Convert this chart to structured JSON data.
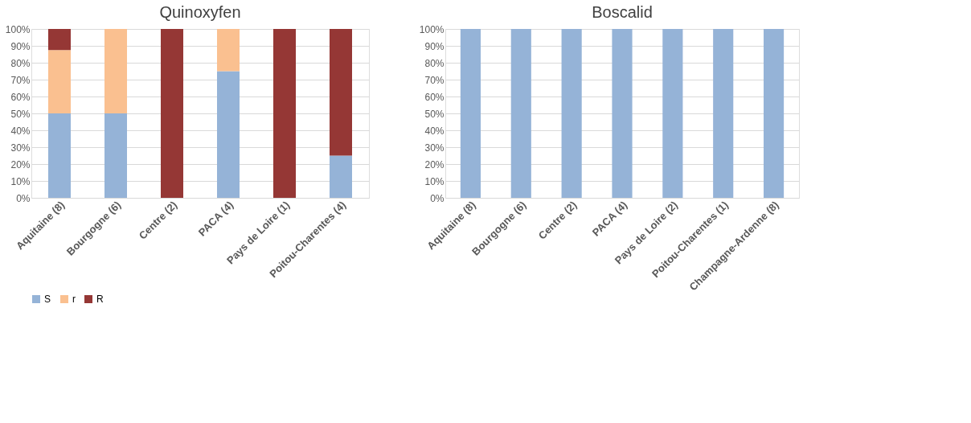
{
  "chart_data": [
    {
      "type": "bar",
      "title": "Quinoxyfen",
      "stacked": true,
      "categories": [
        "Aquitaine (8)",
        "Bourgogne (6)",
        "Centre (2)",
        "PACA (4)",
        "Pays de Loire (1)",
        "Poitou-Charentes (4)"
      ],
      "series": [
        {
          "name": "S",
          "color": "#95b3d7",
          "values": [
            50,
            50,
            0,
            75,
            0,
            25
          ]
        },
        {
          "name": "r",
          "color": "#fac090",
          "values": [
            37.5,
            50,
            0,
            25,
            0,
            0
          ]
        },
        {
          "name": "R",
          "color": "#953735",
          "values": [
            12.5,
            0,
            100,
            0,
            100,
            75
          ]
        }
      ],
      "ylim": [
        0,
        100
      ],
      "yticks": [
        {
          "value": 0,
          "label": "0%"
        },
        {
          "value": 10,
          "label": "10%"
        },
        {
          "value": 20,
          "label": "20%"
        },
        {
          "value": 30,
          "label": "30%"
        },
        {
          "value": 40,
          "label": "40%"
        },
        {
          "value": 50,
          "label": "50%"
        },
        {
          "value": 60,
          "label": "60%"
        },
        {
          "value": 70,
          "label": "70%"
        },
        {
          "value": 80,
          "label": "80%"
        },
        {
          "value": 90,
          "label": "90%"
        },
        {
          "value": 100,
          "label": "100%"
        }
      ],
      "grid": "y",
      "legend": "bottom"
    },
    {
      "type": "bar",
      "title": "Boscalid",
      "stacked": true,
      "categories": [
        "Aquitaine (8)",
        "Bourgogne (6)",
        "Centre (2)",
        "PACA (4)",
        "Pays de Loire (2)",
        "Poitou-Charentes (1)",
        "Champagne-Ardenne (8)"
      ],
      "series": [
        {
          "color": "#95b3d7",
          "values": [
            100,
            100,
            100,
            100,
            100,
            100,
            100
          ]
        }
      ],
      "ylim": [
        0,
        100
      ],
      "yticks": [
        {
          "value": 0,
          "label": "0%"
        },
        {
          "value": 10,
          "label": "10%"
        },
        {
          "value": 20,
          "label": "20%"
        },
        {
          "value": 30,
          "label": "30%"
        },
        {
          "value": 40,
          "label": "40%"
        },
        {
          "value": 50,
          "label": "50%"
        },
        {
          "value": 60,
          "label": "60%"
        },
        {
          "value": 70,
          "label": "70%"
        },
        {
          "value": 80,
          "label": "80%"
        },
        {
          "value": 90,
          "label": "90%"
        },
        {
          "value": 100,
          "label": "100%"
        }
      ],
      "grid": "y",
      "legend": false
    }
  ]
}
